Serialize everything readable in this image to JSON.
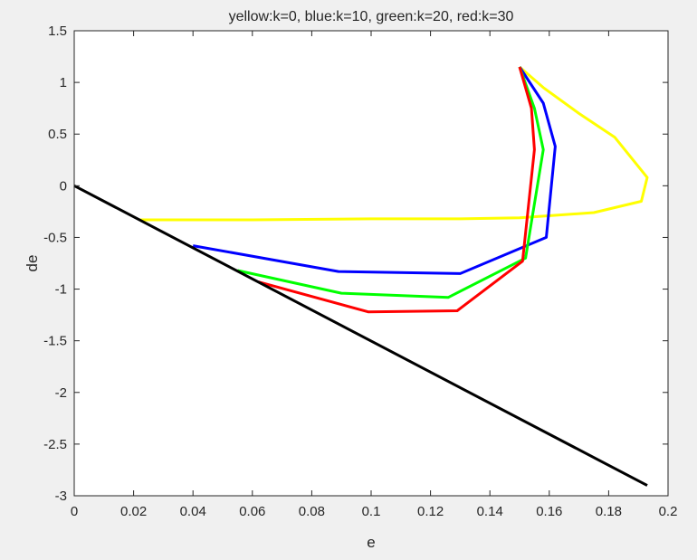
{
  "figure": {
    "background": "#f0f0f0",
    "axes_background": "#ffffff"
  },
  "chart_data": {
    "type": "line",
    "title": "yellow:k=0, blue:k=10, green:k=20, red:k=30",
    "xlabel": "e",
    "ylabel": "de",
    "xlim": [
      0,
      0.2
    ],
    "ylim": [
      -3,
      1.5
    ],
    "xticks": [
      0,
      0.02,
      0.04,
      0.06,
      0.08,
      0.1,
      0.12,
      0.14,
      0.16,
      0.18,
      0.2
    ],
    "xtick_labels": [
      "0",
      "0.02",
      "0.04",
      "0.06",
      "0.08",
      "0.1",
      "0.12",
      "0.14",
      "0.16",
      "0.18",
      "0.2"
    ],
    "yticks": [
      1.5,
      1,
      0.5,
      0,
      -0.5,
      -1,
      -1.5,
      -2,
      -2.5,
      -3
    ],
    "ytick_labels": [
      "1.5",
      "1",
      "0.5",
      "0",
      "-0.5",
      "-1",
      "-1.5",
      "-2",
      "-2.5",
      "-3"
    ],
    "grid": false,
    "series": [
      {
        "color": "#ffff00",
        "x": [
          0.15,
          0.158,
          0.17,
          0.182,
          0.193,
          0.191,
          0.175,
          0.15,
          0.13,
          0.1,
          0.06,
          0.03,
          0.022
        ],
        "y": [
          1.15,
          0.95,
          0.7,
          0.47,
          0.08,
          -0.15,
          -0.26,
          -0.31,
          -0.32,
          -0.32,
          -0.33,
          -0.33,
          -0.33
        ]
      },
      {
        "color": "#0000ff",
        "x": [
          0.15,
          0.158,
          0.162,
          0.159,
          0.13,
          0.089,
          0.04
        ],
        "y": [
          1.15,
          0.8,
          0.38,
          -0.5,
          -0.85,
          -0.83,
          -0.58
        ]
      },
      {
        "color": "#00ff00",
        "x": [
          0.15,
          0.155,
          0.158,
          0.152,
          0.126,
          0.09,
          0.055
        ],
        "y": [
          1.15,
          0.75,
          0.35,
          -0.7,
          -1.08,
          -1.04,
          -0.82
        ]
      },
      {
        "color": "#ff0000",
        "x": [
          0.15,
          0.154,
          0.155,
          0.151,
          0.129,
          0.099,
          0.062
        ],
        "y": [
          1.15,
          0.75,
          0.35,
          -0.73,
          -1.21,
          -1.22,
          -0.93
        ]
      },
      {
        "color": "#000000",
        "x": [
          0,
          0.193
        ],
        "y": [
          0,
          -2.9
        ]
      }
    ]
  }
}
